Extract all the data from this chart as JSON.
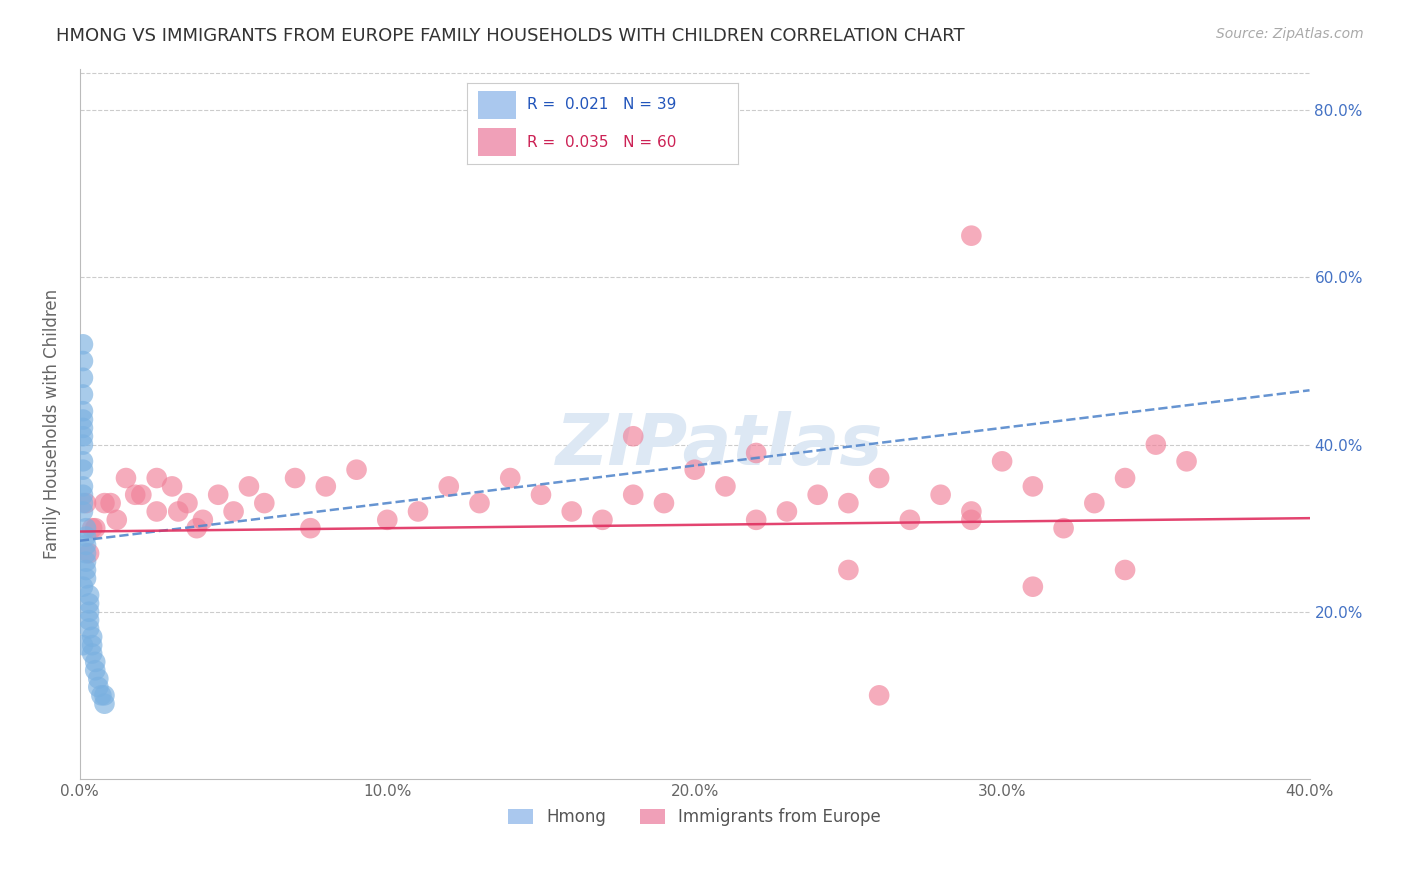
{
  "title": "HMONG VS IMMIGRANTS FROM EUROPE FAMILY HOUSEHOLDS WITH CHILDREN CORRELATION CHART",
  "source": "Source: ZipAtlas.com",
  "ylabel": "Family Households with Children",
  "xlim": [
    0.0,
    0.4
  ],
  "ylim": [
    0.0,
    0.85
  ],
  "hmong_R": 0.021,
  "hmong_N": 39,
  "europe_R": 0.035,
  "europe_N": 60,
  "hmong_color": "#7ab0e0",
  "europe_color": "#f08098",
  "hmong_line_color": "#5588cc",
  "europe_line_color": "#e03060",
  "right_tick_color": "#4472c4",
  "grid_color": "#cccccc",
  "watermark_color": "#dde8f4",
  "hmong_x": [
    0.001,
    0.001,
    0.001,
    0.001,
    0.001,
    0.001,
    0.001,
    0.001,
    0.002,
    0.002,
    0.002,
    0.002,
    0.002,
    0.002,
    0.002,
    0.003,
    0.003,
    0.003,
    0.003,
    0.003,
    0.004,
    0.004,
    0.004,
    0.005,
    0.005,
    0.006,
    0.006,
    0.007,
    0.008,
    0.008,
    0.001,
    0.001,
    0.001,
    0.001,
    0.001,
    0.001,
    0.001,
    0.001,
    0.001
  ],
  "hmong_y": [
    0.42,
    0.41,
    0.38,
    0.37,
    0.35,
    0.34,
    0.33,
    0.32,
    0.3,
    0.29,
    0.28,
    0.27,
    0.26,
    0.25,
    0.24,
    0.22,
    0.21,
    0.2,
    0.19,
    0.18,
    0.17,
    0.16,
    0.15,
    0.14,
    0.13,
    0.12,
    0.11,
    0.1,
    0.1,
    0.09,
    0.44,
    0.46,
    0.5,
    0.52,
    0.48,
    0.43,
    0.4,
    0.23,
    0.16
  ],
  "europe_x": [
    0.005,
    0.01,
    0.015,
    0.02,
    0.025,
    0.03,
    0.035,
    0.04,
    0.045,
    0.05,
    0.055,
    0.06,
    0.07,
    0.075,
    0.08,
    0.09,
    0.1,
    0.11,
    0.12,
    0.13,
    0.14,
    0.15,
    0.16,
    0.17,
    0.18,
    0.19,
    0.2,
    0.21,
    0.22,
    0.23,
    0.24,
    0.25,
    0.26,
    0.27,
    0.28,
    0.29,
    0.3,
    0.31,
    0.32,
    0.33,
    0.34,
    0.35,
    0.36,
    0.002,
    0.003,
    0.004,
    0.008,
    0.012,
    0.018,
    0.025,
    0.032,
    0.038,
    0.25,
    0.29,
    0.31,
    0.18,
    0.22,
    0.26,
    0.29,
    0.34
  ],
  "europe_y": [
    0.3,
    0.33,
    0.36,
    0.34,
    0.32,
    0.35,
    0.33,
    0.31,
    0.34,
    0.32,
    0.35,
    0.33,
    0.36,
    0.3,
    0.35,
    0.37,
    0.31,
    0.32,
    0.35,
    0.33,
    0.36,
    0.34,
    0.32,
    0.31,
    0.34,
    0.33,
    0.37,
    0.35,
    0.31,
    0.32,
    0.34,
    0.33,
    0.36,
    0.31,
    0.34,
    0.32,
    0.38,
    0.35,
    0.3,
    0.33,
    0.36,
    0.4,
    0.38,
    0.33,
    0.27,
    0.3,
    0.33,
    0.31,
    0.34,
    0.36,
    0.32,
    0.3,
    0.25,
    0.31,
    0.23,
    0.41,
    0.39,
    0.1,
    0.65,
    0.25
  ],
  "hmong_trendline_x": [
    0.0,
    0.4
  ],
  "hmong_trendline_y": [
    0.285,
    0.465
  ],
  "europe_trendline_x": [
    0.0,
    0.4
  ],
  "europe_trendline_y": [
    0.296,
    0.312
  ]
}
